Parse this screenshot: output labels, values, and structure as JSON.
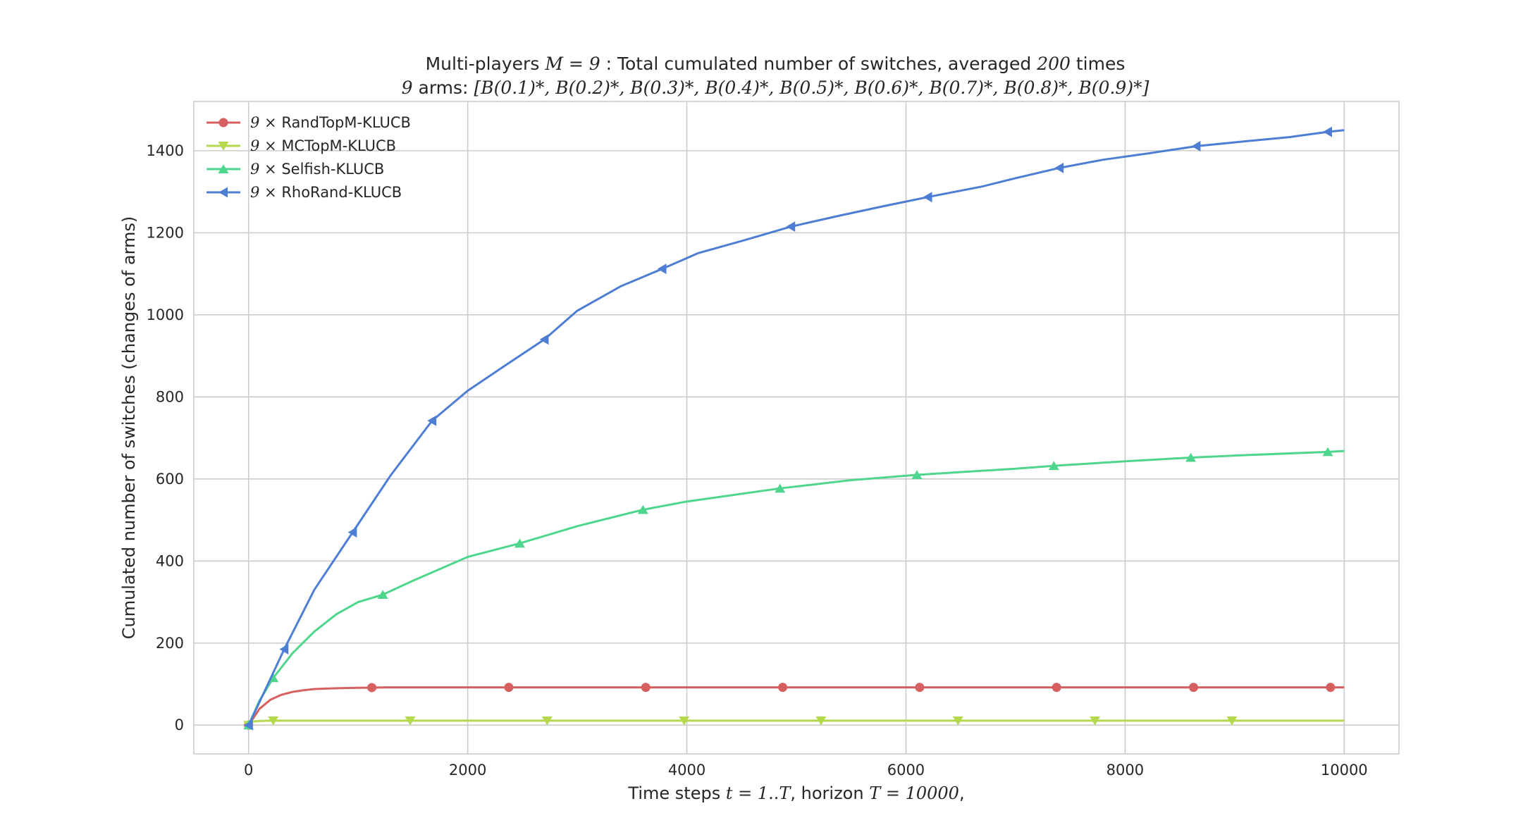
{
  "chart_data": {
    "type": "line",
    "title_line1": "Multi-players M = 9 : Total cumulated number of switches, averaged 200 times",
    "title_line2": "9 arms: [B(0.1)*, B(0.2)*, B(0.3)*, B(0.4)*, B(0.5)*, B(0.6)*, B(0.7)*, B(0.8)*, B(0.9)*]",
    "xlabel": "Time steps t = 1..T, horizon T = 10000,",
    "ylabel": "Cumulated number of switches (changes of arms)",
    "xlim": [
      -500,
      10500
    ],
    "ylim": [
      -70,
      1520
    ],
    "xticks": [
      0,
      2000,
      4000,
      6000,
      8000,
      10000
    ],
    "yticks": [
      0,
      200,
      400,
      600,
      800,
      1000,
      1200,
      1400
    ],
    "grid": true,
    "legend_position": "top-left",
    "series": [
      {
        "name": "9× RandTopM-KLUCB",
        "color": "#d65f5f",
        "marker": "circle",
        "x": [
          0,
          100,
          200,
          300,
          400,
          500,
          600,
          700,
          800,
          1000,
          1250,
          1500,
          2000,
          3000,
          4000,
          5000,
          6000,
          7000,
          8000,
          9000,
          10000
        ],
        "y": [
          0,
          40,
          62,
          74,
          81,
          85,
          88,
          89,
          90,
          91,
          92,
          92,
          92,
          92,
          92,
          92,
          92,
          92,
          92,
          92,
          92
        ],
        "markers_x": [
          0,
          1125,
          2375,
          3625,
          4875,
          6125,
          7375,
          8625,
          9875
        ]
      },
      {
        "name": "9× MCTopM-KLUCB",
        "color": "#b5d94d",
        "marker": "triangle-down",
        "x": [
          0,
          20,
          50,
          100,
          200,
          500,
          1000,
          2000,
          4000,
          6000,
          8000,
          10000
        ],
        "y": [
          0,
          6,
          9,
          10,
          11,
          11,
          11,
          11,
          11,
          11,
          11,
          11
        ],
        "markers_x": [
          0,
          225,
          1475,
          2725,
          3975,
          5225,
          6475,
          7725,
          8975
        ]
      },
      {
        "name": "9× Selfish-KLUCB",
        "color": "#4fd68d",
        "marker": "triangle-up",
        "x": [
          0,
          100,
          225,
          400,
          600,
          800,
          1000,
          1225,
          1500,
          2000,
          2475,
          3000,
          3600,
          4000,
          4850,
          5500,
          6100,
          7000,
          7350,
          8000,
          8600,
          9000,
          9850,
          10000
        ],
        "y": [
          0,
          60,
          115,
          175,
          228,
          270,
          300,
          318,
          352,
          410,
          443,
          485,
          525,
          545,
          577,
          597,
          610,
          625,
          632,
          643,
          652,
          657,
          666,
          668
        ],
        "markers_x": [
          0,
          225,
          1225,
          2475,
          3600,
          4850,
          6100,
          7350,
          8600,
          9850
        ]
      },
      {
        "name": "9× RhoRand-KLUCB",
        "color": "#4e7ed4",
        "marker": "triangle-left",
        "x": [
          0,
          150,
          325,
          600,
          950,
          1300,
          1675,
          2000,
          2350,
          2700,
          3000,
          3400,
          3775,
          4100,
          4500,
          4950,
          5400,
          5800,
          6200,
          6700,
          7000,
          7400,
          7800,
          8200,
          8650,
          9100,
          9500,
          9850,
          10000
        ],
        "y": [
          0,
          85,
          185,
          330,
          470,
          610,
          742,
          815,
          878,
          940,
          1010,
          1070,
          1112,
          1150,
          1180,
          1215,
          1242,
          1265,
          1287,
          1313,
          1333,
          1358,
          1378,
          1393,
          1411,
          1423,
          1433,
          1446,
          1450
        ],
        "markers_x": [
          0,
          325,
          950,
          1675,
          2700,
          3775,
          4950,
          6200,
          7400,
          8650,
          9850
        ]
      }
    ]
  },
  "legend": [
    {
      "prefix": "9 ×",
      "label": "RandTopM-KLUCB",
      "color": "#d65f5f",
      "marker": "circle"
    },
    {
      "prefix": "9 ×",
      "label": "MCTopM-KLUCB",
      "color": "#b5d94d",
      "marker": "triangle-down"
    },
    {
      "prefix": "9 ×",
      "label": "Selfish-KLUCB",
      "color": "#4fd68d",
      "marker": "triangle-up"
    },
    {
      "prefix": "9 ×",
      "label": "RhoRand-KLUCB",
      "color": "#4e7ed4",
      "marker": "triangle-left"
    }
  ],
  "title": {
    "line1_pre": "Multi-players ",
    "line1_math": "M = 9",
    "line1_post": " : Total cumulated number of switches, averaged ",
    "line1_num": "200",
    "line1_end": " times",
    "line2_pre": "9",
    "line2_mid": " arms: ",
    "line2_math": "[B(0.1)*, B(0.2)*, B(0.3)*, B(0.4)*, B(0.5)*, B(0.6)*, B(0.7)*, B(0.8)*, B(0.9)*]"
  },
  "xlabel_parts": {
    "pre": "Time steps ",
    "math1": "t = 1..T",
    "mid": ", horizon ",
    "math2": "T = 10000",
    "end": ","
  }
}
